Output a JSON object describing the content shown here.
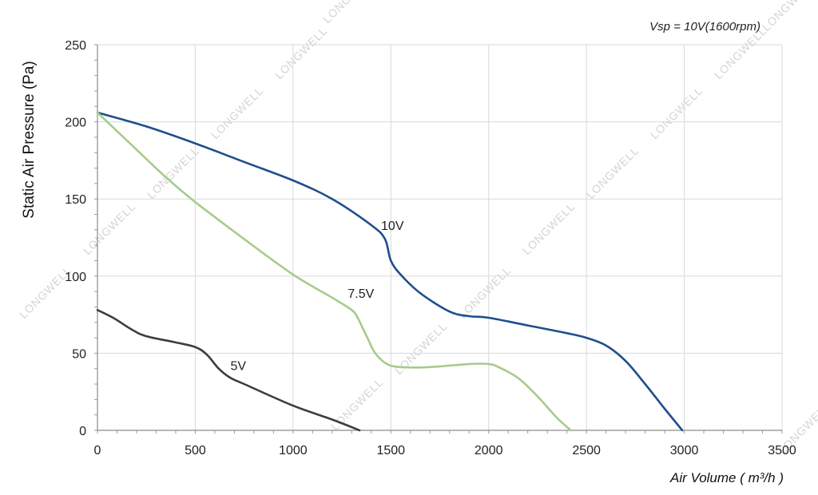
{
  "chart_data": {
    "type": "line",
    "annotation": "Vsp = 10V(1600rpm)",
    "xlabel": "Air Volume ( m³/h )",
    "ylabel": "Static Air Pressure  (Pa)",
    "xlim": [
      0,
      3500
    ],
    "ylim": [
      0,
      250
    ],
    "xticks": [
      "0",
      "500",
      "1000",
      "1500",
      "2000",
      "2500",
      "3000",
      "3500"
    ],
    "yticks": [
      "0",
      "50",
      "100",
      "150",
      "200",
      "250"
    ],
    "grid": true,
    "watermark": "LONGWELL",
    "series": [
      {
        "name": "10V",
        "color": "#1f4e8c",
        "points": [
          [
            0,
            206
          ],
          [
            250,
            197
          ],
          [
            500,
            186
          ],
          [
            750,
            174
          ],
          [
            1000,
            162
          ],
          [
            1200,
            150
          ],
          [
            1400,
            133
          ],
          [
            1470,
            124
          ],
          [
            1500,
            110
          ],
          [
            1550,
            101
          ],
          [
            1650,
            89
          ],
          [
            1800,
            77
          ],
          [
            1900,
            74
          ],
          [
            2000,
            73
          ],
          [
            2200,
            68
          ],
          [
            2400,
            63
          ],
          [
            2500,
            60
          ],
          [
            2600,
            55
          ],
          [
            2700,
            45
          ],
          [
            2800,
            30
          ],
          [
            2900,
            14
          ],
          [
            2990,
            0
          ]
        ]
      },
      {
        "name": "7.5V",
        "color": "#a6cb8a",
        "points": [
          [
            0,
            206
          ],
          [
            150,
            188
          ],
          [
            350,
            164
          ],
          [
            500,
            148
          ],
          [
            750,
            124
          ],
          [
            1000,
            101
          ],
          [
            1200,
            86
          ],
          [
            1300,
            78
          ],
          [
            1330,
            73
          ],
          [
            1380,
            60
          ],
          [
            1420,
            50
          ],
          [
            1480,
            43
          ],
          [
            1550,
            41
          ],
          [
            1700,
            41
          ],
          [
            1900,
            43
          ],
          [
            2000,
            43
          ],
          [
            2050,
            41
          ],
          [
            2150,
            34
          ],
          [
            2250,
            22
          ],
          [
            2350,
            8
          ],
          [
            2420,
            0
          ]
        ]
      },
      {
        "name": "5V",
        "color": "#3d3d3d",
        "points": [
          [
            0,
            78
          ],
          [
            80,
            73
          ],
          [
            180,
            65
          ],
          [
            250,
            61
          ],
          [
            400,
            57
          ],
          [
            500,
            54
          ],
          [
            560,
            49
          ],
          [
            620,
            40
          ],
          [
            680,
            34
          ],
          [
            750,
            30
          ],
          [
            1000,
            16
          ],
          [
            1200,
            7
          ],
          [
            1340,
            0
          ]
        ]
      }
    ],
    "label_positions": [
      [
        1450,
        130
      ],
      [
        1280,
        86
      ],
      [
        680,
        39
      ]
    ]
  }
}
